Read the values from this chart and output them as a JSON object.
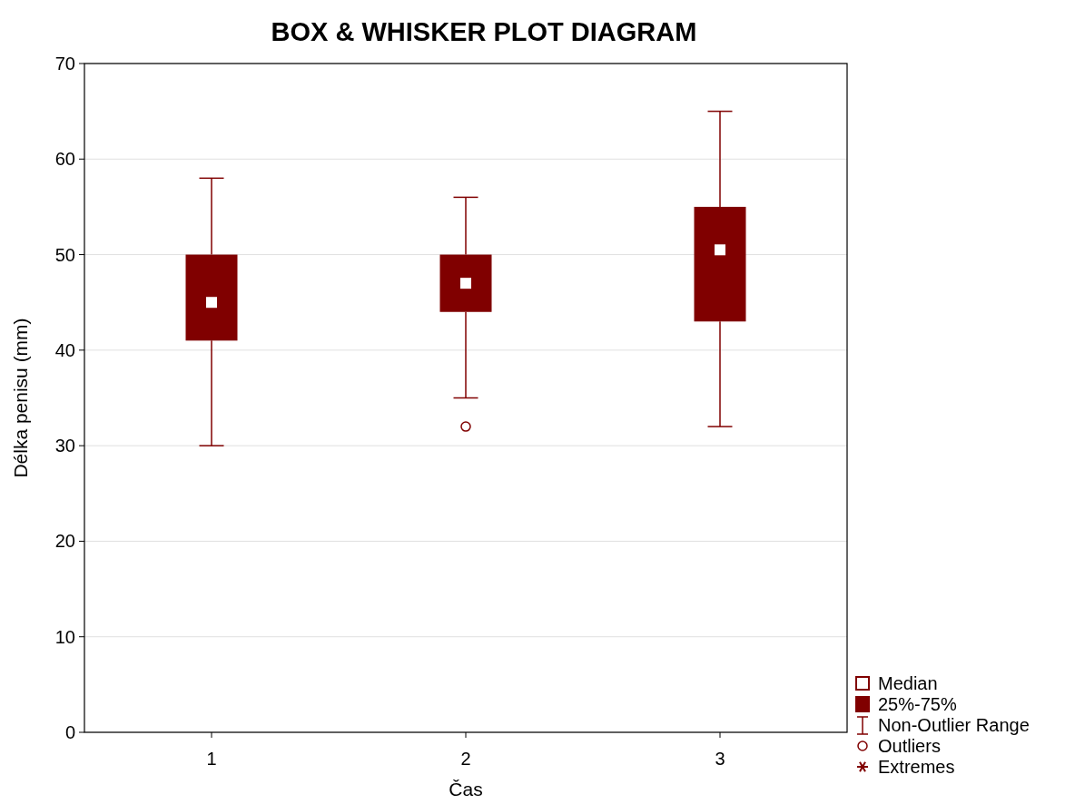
{
  "chart_data": {
    "type": "box",
    "title": "BOX & WHISKER PLOT DIAGRAM",
    "xlabel": "Čas",
    "ylabel": "Délka penisu (mm)",
    "categories": [
      "1",
      "2",
      "3"
    ],
    "series": [
      {
        "color": "#800000",
        "boxes": [
          {
            "low": 30,
            "q1": 41,
            "median": 45,
            "q3": 50,
            "high": 58
          },
          {
            "low": 35,
            "q1": 44,
            "median": 47,
            "q3": 50,
            "high": 56,
            "outliers": [
              32
            ]
          },
          {
            "low": 32,
            "q1": 43,
            "median": 50.5,
            "q3": 55,
            "high": 65
          }
        ]
      }
    ],
    "ylim": [
      0,
      70
    ],
    "yticks": [
      0,
      10,
      20,
      30,
      40,
      50,
      60,
      70
    ],
    "grid": "y",
    "annotations": [
      "Median",
      "25%-75%",
      "Non-Outlier Range",
      "Outliers",
      "Extremes"
    ]
  }
}
